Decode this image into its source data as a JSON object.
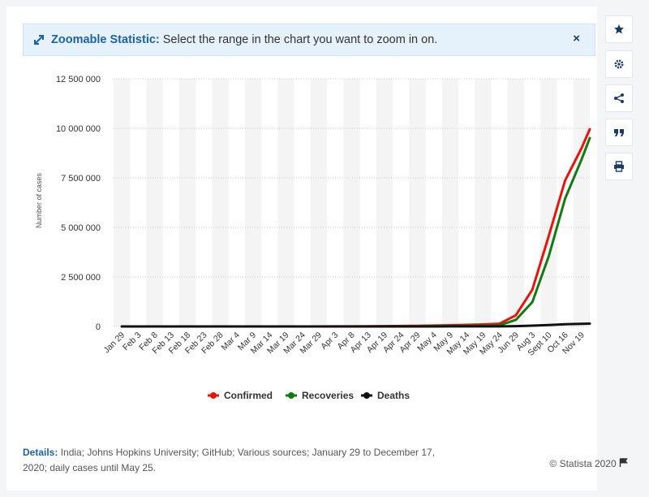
{
  "banner": {
    "title": "Zoomable Statistic:",
    "text": "Select the range in the chart you want to zoom in on.",
    "close": "×"
  },
  "toolbar": {
    "icons": [
      "star-icon",
      "gear-icon",
      "share-icon",
      "quote-icon",
      "print-icon"
    ]
  },
  "footer": {
    "details_label": "Details:",
    "details_text": "India; Johns Hopkins University; GitHub; Various sources; January 29 to December 17, 2020; daily cases until May 25.",
    "copyright": "© Statista 2020"
  },
  "colors": {
    "confirmed": "#e8140c",
    "recoveries": "#127a0f",
    "deaths": "#111111",
    "accent": "#1b62a8"
  },
  "chart_data": {
    "type": "line",
    "title": "",
    "xlabel": "",
    "ylabel": "Number of cases",
    "ylim": [
      0,
      12500000
    ],
    "yticks": [
      0,
      2500000,
      5000000,
      7500000,
      10000000,
      12500000
    ],
    "ytick_labels": [
      "0",
      "2 500 000",
      "5 000 000",
      "7 500 000",
      "10 000 000",
      "12 500 000"
    ],
    "categories": [
      "Jan 29",
      "Feb 3",
      "Feb 8",
      "Feb 13",
      "Feb 18",
      "Feb 23",
      "Feb 28",
      "Mar 4",
      "Mar 9",
      "Mar 14",
      "Mar 19",
      "Mar 24",
      "Mar 29",
      "Apr 3",
      "Apr 8",
      "Apr 13",
      "Apr 19",
      "Apr 24",
      "Apr 29",
      "May 4",
      "May 9",
      "May 14",
      "May 19",
      "May 24",
      "Jun 29",
      "Aug 3",
      "Sept 10",
      "Oct 16",
      "Nov 19"
    ],
    "x_end_category": "Dec 17",
    "grid": true,
    "legend_position": "bottom",
    "series": [
      {
        "name": "Confirmed",
        "color": "#e8140c",
        "values": [
          1,
          3,
          3,
          3,
          3,
          3,
          3,
          28,
          43,
          100,
          195,
          536,
          1024,
          2567,
          5865,
          9352,
          15722,
          23452,
          33050,
          46437,
          62939,
          81970,
          101139,
          138536,
          566840,
          1855745,
          4562414,
          7370468,
          9004365
        ],
        "end_value": 9956557
      },
      {
        "name": "Recoveries",
        "color": "#127a0f",
        "values": [
          0,
          0,
          0,
          3,
          3,
          3,
          3,
          3,
          4,
          10,
          20,
          40,
          95,
          229,
          472,
          1152,
          2854,
          5210,
          10007,
          15331,
          21123,
          34224,
          39174,
          57721,
          334822,
          1230509,
          3542663,
          6453779,
          8428409
        ],
        "end_value": 9510000
      },
      {
        "name": "Deaths",
        "color": "#111111",
        "values": [
          0,
          0,
          0,
          0,
          0,
          0,
          0,
          0,
          0,
          2,
          4,
          10,
          27,
          72,
          166,
          324,
          521,
          779,
          1079,
          1568,
          2109,
          2649,
          3163,
          4021,
          16893,
          38938,
          75062,
          112161,
          132162
        ],
        "end_value": 144451
      }
    ]
  }
}
